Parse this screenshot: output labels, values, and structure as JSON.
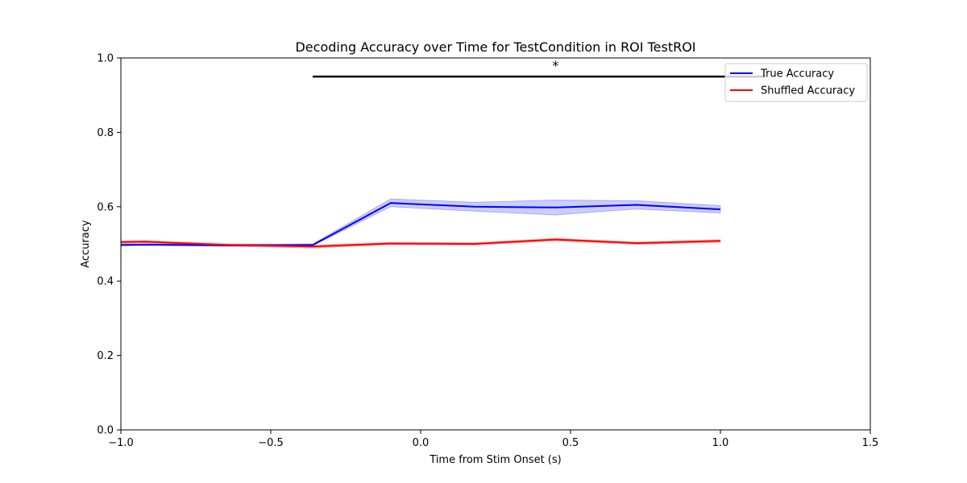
{
  "chart_data": {
    "type": "line",
    "title": "Decoding Accuracy over Time for TestCondition in ROI TestROI",
    "xlabel": "Time from Stim Onset (s)",
    "ylabel": "Accuracy",
    "xlim": [
      -1.0,
      1.5
    ],
    "ylim": [
      0.0,
      1.0
    ],
    "x_ticks": [
      -1.0,
      -0.5,
      0.0,
      0.5,
      1.0,
      1.5
    ],
    "x_tick_labels": [
      "−1.0",
      "−0.5",
      "0.0",
      "0.5",
      "1.0",
      "1.5"
    ],
    "y_ticks": [
      0.0,
      0.2,
      0.4,
      0.6,
      0.8,
      1.0
    ],
    "y_tick_labels": [
      "0.0",
      "0.2",
      "0.4",
      "0.6",
      "0.8",
      "1.0"
    ],
    "grid": false,
    "legend_position": "top-right",
    "x": [
      -1.0,
      -0.92,
      -0.64,
      -0.36,
      -0.1,
      0.18,
      0.45,
      0.72,
      1.0
    ],
    "series": [
      {
        "name": "True Accuracy",
        "color": "#0000ff",
        "band_color": "#0000ff",
        "values": [
          0.497,
          0.498,
          0.496,
          0.497,
          0.61,
          0.6,
          0.598,
          0.605,
          0.593
        ],
        "lower": [
          0.495,
          0.496,
          0.494,
          0.495,
          0.6,
          0.588,
          0.578,
          0.594,
          0.583
        ],
        "upper": [
          0.5,
          0.5,
          0.499,
          0.5,
          0.621,
          0.612,
          0.618,
          0.616,
          0.603
        ]
      },
      {
        "name": "Shuffled Accuracy",
        "color": "#ff0000",
        "band_color": "#ff0000",
        "values": [
          0.505,
          0.506,
          0.497,
          0.493,
          0.501,
          0.5,
          0.512,
          0.502,
          0.508
        ],
        "lower": [
          0.502,
          0.503,
          0.494,
          0.489,
          0.498,
          0.497,
          0.508,
          0.499,
          0.504
        ],
        "upper": [
          0.508,
          0.509,
          0.5,
          0.496,
          0.504,
          0.503,
          0.515,
          0.505,
          0.511
        ]
      }
    ],
    "significance": {
      "x_start": -0.36,
      "x_end": 1.15,
      "y": 0.95,
      "marker": "*",
      "marker_x": 0.45,
      "color": "#000000"
    }
  }
}
